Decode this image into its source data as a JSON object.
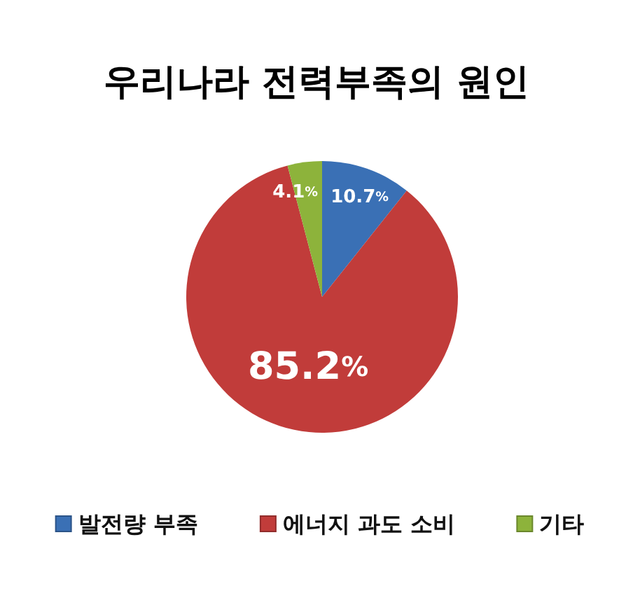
{
  "chart_data": {
    "type": "pie",
    "title": "우리나라 전력부족의 원인",
    "categories": [
      "발전량 부족",
      "에너지 과도 소비",
      "기타"
    ],
    "values": [
      10.7,
      85.2,
      4.1
    ],
    "colors": [
      "#3a70b5",
      "#c13c3a",
      "#8db33b"
    ],
    "value_labels": [
      "10.7%",
      "85.2%",
      "4.1%"
    ],
    "legend": "bottom"
  }
}
